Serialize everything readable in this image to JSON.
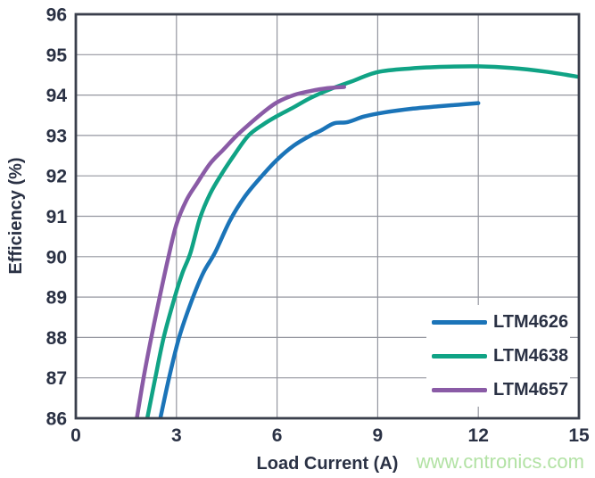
{
  "watermark": "www.cntronics.com",
  "colors": {
    "axis_text": "#2a3144",
    "grid": "#94969f",
    "border": "#3a3f4c",
    "background": "#ffffff",
    "watermark": "#b2e2a4"
  },
  "chart_data": {
    "type": "line",
    "title": "",
    "xlabel": "Load Current (A)",
    "ylabel": "Efficiency (%)",
    "xlim": [
      0,
      15
    ],
    "ylim": [
      86,
      96
    ],
    "x_ticks": [
      0,
      3,
      6,
      9,
      12,
      15
    ],
    "y_ticks": [
      86,
      87,
      88,
      89,
      90,
      91,
      92,
      93,
      94,
      95,
      96
    ],
    "grid": true,
    "legend_position": "lower right",
    "series": [
      {
        "name": "LTM4626",
        "color": "#1b74b8",
        "points": [
          [
            2.52,
            86
          ],
          [
            2.78,
            87
          ],
          [
            3.08,
            88
          ],
          [
            3.45,
            88.9
          ],
          [
            3.8,
            89.6
          ],
          [
            4.15,
            90.1
          ],
          [
            4.6,
            90.9
          ],
          [
            5.05,
            91.5
          ],
          [
            5.55,
            92.0
          ],
          [
            6.0,
            92.4
          ],
          [
            6.5,
            92.75
          ],
          [
            7.0,
            93.0
          ],
          [
            7.3,
            93.12
          ],
          [
            7.7,
            93.3
          ],
          [
            8.1,
            93.33
          ],
          [
            8.6,
            93.47
          ],
          [
            9.2,
            93.57
          ],
          [
            10.0,
            93.66
          ],
          [
            10.8,
            93.72
          ],
          [
            11.4,
            93.76
          ],
          [
            12.0,
            93.8
          ]
        ]
      },
      {
        "name": "LTM4638",
        "color": "#10a385",
        "points": [
          [
            2.13,
            86
          ],
          [
            2.37,
            87
          ],
          [
            2.62,
            88
          ],
          [
            2.95,
            89
          ],
          [
            3.18,
            89.6
          ],
          [
            3.42,
            90.1
          ],
          [
            3.7,
            90.95
          ],
          [
            4.0,
            91.55
          ],
          [
            4.35,
            92.05
          ],
          [
            4.75,
            92.55
          ],
          [
            5.15,
            93.0
          ],
          [
            5.6,
            93.28
          ],
          [
            6.0,
            93.48
          ],
          [
            6.5,
            93.7
          ],
          [
            7.0,
            93.93
          ],
          [
            7.6,
            94.15
          ],
          [
            8.2,
            94.33
          ],
          [
            9.0,
            94.57
          ],
          [
            10.0,
            94.66
          ],
          [
            11.0,
            94.7
          ],
          [
            12.0,
            94.71
          ],
          [
            13.0,
            94.67
          ],
          [
            14.0,
            94.58
          ],
          [
            15.0,
            94.45
          ]
        ]
      },
      {
        "name": "LTM4657",
        "color": "#8a5ba6",
        "points": [
          [
            1.82,
            86
          ],
          [
            2.02,
            87
          ],
          [
            2.25,
            88
          ],
          [
            2.5,
            89
          ],
          [
            2.75,
            89.95
          ],
          [
            3.0,
            90.8
          ],
          [
            3.3,
            91.4
          ],
          [
            3.6,
            91.8
          ],
          [
            4.0,
            92.3
          ],
          [
            4.4,
            92.65
          ],
          [
            4.8,
            93.0
          ],
          [
            5.2,
            93.3
          ],
          [
            5.6,
            93.58
          ],
          [
            6.0,
            93.82
          ],
          [
            6.5,
            94.0
          ],
          [
            7.0,
            94.1
          ],
          [
            7.5,
            94.17
          ],
          [
            8.0,
            94.2
          ]
        ]
      }
    ]
  }
}
